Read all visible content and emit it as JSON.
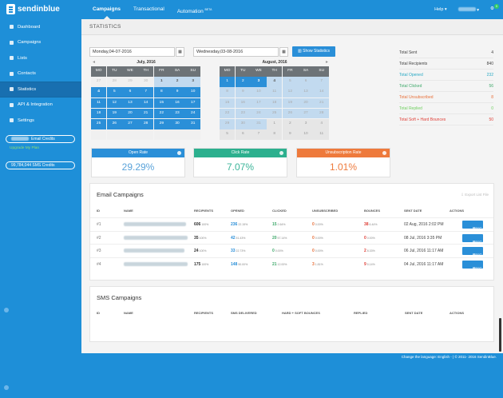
{
  "app": {
    "brand": "sendinblue"
  },
  "topnav": {
    "items": [
      {
        "label": "Campaigns",
        "active": true
      },
      {
        "label": "Transactional"
      },
      {
        "label": "Automation",
        "sup": "BETA"
      }
    ]
  },
  "topright": {
    "help": "Help",
    "notif_count": "0"
  },
  "sidebar": {
    "items": [
      {
        "label": "Dashboard",
        "icon": "dashboard-icon"
      },
      {
        "label": "Campaigns",
        "icon": "campaigns-icon"
      },
      {
        "label": "Lists",
        "icon": "lists-icon"
      },
      {
        "label": "Contacts",
        "icon": "contacts-icon"
      },
      {
        "label": "Statistics",
        "icon": "statistics-icon",
        "active": true
      },
      {
        "label": "API & Integration",
        "icon": "api-icon"
      },
      {
        "label": "Settings",
        "icon": "settings-icon"
      }
    ],
    "email_credits": "Email Credits",
    "upgrade": "Upgrade My Plan",
    "sms_credits": "99,784,044 SMS Credits"
  },
  "page": {
    "title": "STATISTICS"
  },
  "filters": {
    "start_date": "Monday,04-07-2016",
    "end_date": "Wednesday,03-08-2016",
    "show_btn": "Show Statistics"
  },
  "calendars": [
    {
      "title": "July, 2016",
      "days": [
        "MO",
        "TU",
        "WE",
        "TH",
        "FR",
        "SA",
        "SU"
      ]
    },
    {
      "title": "August, 2016",
      "days": [
        "MO",
        "TU",
        "WE",
        "TH",
        "FR",
        "SA",
        "SU"
      ]
    }
  ],
  "totals": [
    {
      "label": "Total Sent",
      "value": "4",
      "color": "#444"
    },
    {
      "label": "Total Recipients",
      "value": "840",
      "color": "#444"
    },
    {
      "label": "Total Opened",
      "value": "232",
      "color": "#29a9c4"
    },
    {
      "label": "Total Clicked",
      "value": "56",
      "color": "#3fa96b"
    },
    {
      "label": "Total Unsubscribed",
      "value": "8",
      "color": "#e8703a"
    },
    {
      "label": "Total Replied",
      "value": "0",
      "color": "#6fcf5f"
    },
    {
      "label": "Total Soft + Hard Bounces",
      "value": "50",
      "color": "#e0423a"
    }
  ],
  "stats": [
    {
      "label": "Open Rate",
      "value": "29.29%",
      "color": "#2a8fd8",
      "valcolor": "#5aa3da"
    },
    {
      "label": "Click Rate",
      "value": "7.07%",
      "color": "#2cb08e",
      "valcolor": "#3cb59a"
    },
    {
      "label": "Unsubscription Rate",
      "value": "1.01%",
      "color": "#ee7a3c",
      "valcolor": "#ee7a3c"
    }
  ],
  "email": {
    "title": "Email Campaigns",
    "export": "Export List File",
    "headers": [
      "ID",
      "NAME",
      "RECIPIENTS",
      "OPENED",
      "CLICKED",
      "UNSUBSCRIBED",
      "BOUNCES",
      "SENT DATE",
      "ACTIONS"
    ],
    "rows": [
      {
        "id": "#1",
        "rec": "606",
        "recp": "100%",
        "op": "236",
        "opp": "22.15%",
        "cl": "15",
        "clp": "2.64%",
        "un": "0",
        "unp": "0.00%",
        "bo": "38",
        "bop": "6.44%",
        "date": "02 Aug, 2016 2:02 PM",
        "action": "report"
      },
      {
        "id": "#2",
        "rec": "35",
        "recp": "100%",
        "op": "42",
        "opp": "51.43%",
        "cl": "20",
        "clp": "57.14%",
        "un": "0",
        "unp": "0.00%",
        "bo": "0",
        "bop": "0.00%",
        "date": "08 Jul, 2016 3:35 PM",
        "action": "report"
      },
      {
        "id": "#3",
        "rec": "24",
        "recp": "100%",
        "op": "33",
        "opp": "22.73%",
        "cl": "0",
        "clp": "0.00%",
        "un": "0",
        "unp": "0.00%",
        "bo": "2",
        "bop": "8.33%",
        "date": "06 Jul, 2016 11:17 AM",
        "action": "report"
      },
      {
        "id": "#4",
        "rec": "175",
        "recp": "100%",
        "op": "148",
        "opp": "50.00%",
        "cl": "21",
        "clp": "12.00%",
        "un": "3",
        "unp": "1.81%",
        "bo": "9",
        "bop": "5.14%",
        "date": "04 Jul, 2016 11:17 AM",
        "action": "report"
      }
    ]
  },
  "sms": {
    "title": "SMS Campaigns",
    "headers": [
      "ID",
      "NAME",
      "RECIPIENTS",
      "SMS DELIVERED",
      "HARD + SOFT BOUNCES",
      "REPLIED",
      "SENT DATE",
      "ACTIONS"
    ]
  },
  "footer": {
    "text": "Change the language: English -  |  © 2011- 2016 SendinBlue."
  }
}
